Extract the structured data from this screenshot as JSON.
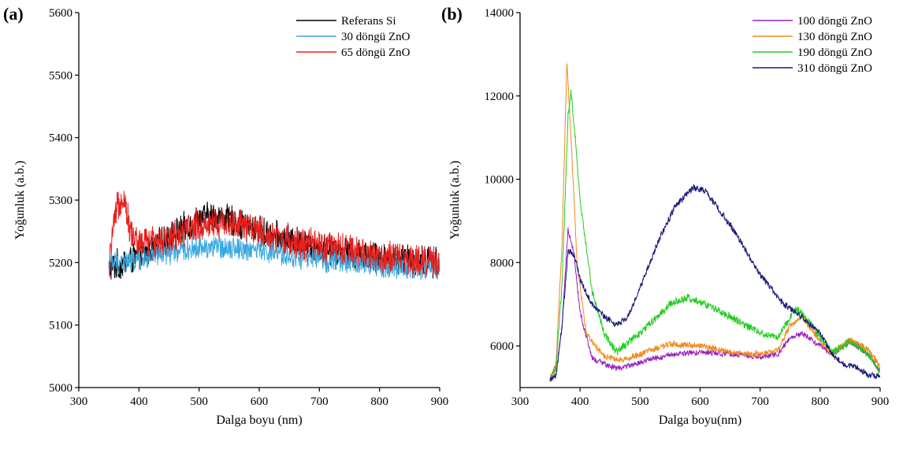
{
  "chart_data": [
    {
      "type": "line",
      "panel_label": "(a)",
      "xlabel": "Dalga boyu (nm)",
      "ylabel": "Yoğunluk (a.b.)",
      "xlim": [
        300,
        900
      ],
      "ylim": [
        5000,
        5600
      ],
      "xticks": [
        300,
        400,
        500,
        600,
        700,
        800,
        900
      ],
      "yticks": [
        5000,
        5100,
        5200,
        5300,
        5400,
        5500,
        5600
      ],
      "grid": false,
      "legend": "top-right",
      "series": [
        {
          "name": "Referans Si",
          "color": "#000000",
          "x": [
            350,
            360,
            375,
            400,
            450,
            500,
            530,
            560,
            600,
            650,
            700,
            750,
            800,
            850,
            900
          ],
          "y": [
            5190,
            5195,
            5200,
            5210,
            5240,
            5270,
            5275,
            5265,
            5250,
            5235,
            5225,
            5215,
            5210,
            5205,
            5200
          ]
        },
        {
          "name": "30 döngü ZnO",
          "color": "#3aa8e0",
          "x": [
            350,
            360,
            375,
            400,
            450,
            500,
            550,
            600,
            650,
            700,
            750,
            800,
            850,
            900
          ],
          "y": [
            5195,
            5200,
            5200,
            5205,
            5215,
            5225,
            5225,
            5220,
            5210,
            5205,
            5200,
            5195,
            5190,
            5190
          ]
        },
        {
          "name": "65 döngü ZnO",
          "color": "#e8201e",
          "x": [
            350,
            355,
            365,
            375,
            385,
            400,
            450,
            500,
            550,
            600,
            650,
            700,
            750,
            800,
            850,
            900
          ],
          "y": [
            5180,
            5240,
            5290,
            5310,
            5250,
            5230,
            5240,
            5260,
            5265,
            5250,
            5235,
            5225,
            5220,
            5210,
            5205,
            5200
          ]
        }
      ]
    },
    {
      "type": "line",
      "panel_label": "(b)",
      "xlabel": "Dalga boyu(nm)",
      "ylabel": "Yoğunluk (a.b.)",
      "xlim": [
        300,
        900
      ],
      "ylim": [
        5000,
        14000
      ],
      "xticks": [
        300,
        400,
        500,
        600,
        700,
        800,
        900
      ],
      "yticks": [
        6000,
        8000,
        10000,
        12000,
        14000
      ],
      "grid": false,
      "legend": "top-right",
      "series": [
        {
          "name": "100 döngü ZnO",
          "color": "#9b1fbf",
          "x": [
            350,
            360,
            370,
            380,
            390,
            400,
            420,
            460,
            500,
            550,
            600,
            650,
            700,
            730,
            750,
            770,
            790,
            820,
            850,
            880,
            900
          ],
          "y": [
            5200,
            5300,
            6500,
            8800,
            8200,
            6800,
            5700,
            5450,
            5600,
            5800,
            5850,
            5800,
            5750,
            5800,
            6200,
            6300,
            6100,
            5800,
            6100,
            5800,
            5400
          ]
        },
        {
          "name": "130 döngü ZnO",
          "color": "#f08a1c",
          "x": [
            350,
            360,
            370,
            378,
            385,
            395,
            410,
            440,
            470,
            500,
            550,
            600,
            650,
            700,
            730,
            750,
            770,
            790,
            820,
            850,
            880,
            900
          ],
          "y": [
            5200,
            5600,
            8500,
            12800,
            11000,
            8000,
            6300,
            5750,
            5650,
            5800,
            6050,
            6000,
            5850,
            5800,
            5900,
            6500,
            6700,
            6300,
            5800,
            6150,
            5900,
            5500
          ]
        },
        {
          "name": "190 döngü ZnO",
          "color": "#22cc22",
          "x": [
            350,
            360,
            370,
            380,
            385,
            392,
            400,
            420,
            440,
            460,
            500,
            550,
            580,
            600,
            650,
            700,
            730,
            750,
            760,
            780,
            800,
            820,
            850,
            880,
            900
          ],
          "y": [
            5200,
            5500,
            7500,
            11500,
            12100,
            11000,
            9500,
            7300,
            6300,
            5850,
            6300,
            7000,
            7150,
            7050,
            6700,
            6300,
            6200,
            6700,
            6900,
            6600,
            6200,
            5850,
            6100,
            5800,
            5400
          ]
        },
        {
          "name": "310 döngü ZnO",
          "color": "#1a1a7a",
          "x": [
            350,
            360,
            370,
            380,
            390,
            400,
            420,
            440,
            460,
            480,
            500,
            530,
            560,
            590,
            610,
            630,
            660,
            700,
            740,
            770,
            800,
            820,
            840,
            860,
            880,
            900
          ],
          "y": [
            5200,
            5300,
            6500,
            8300,
            8200,
            7600,
            7000,
            6700,
            6500,
            6700,
            7400,
            8500,
            9400,
            9800,
            9700,
            9300,
            8700,
            7700,
            7000,
            6700,
            6300,
            5800,
            5550,
            5500,
            5300,
            5250
          ]
        }
      ]
    }
  ]
}
